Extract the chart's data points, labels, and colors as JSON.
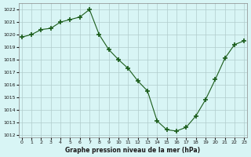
{
  "hours": [
    0,
    1,
    2,
    3,
    4,
    5,
    6,
    7,
    8,
    9,
    10,
    11,
    12,
    13,
    14,
    15,
    16,
    17,
    18,
    19,
    20,
    21,
    22,
    23
  ],
  "pressure": [
    1019.8,
    1020.0,
    1020.4,
    1020.5,
    1021.0,
    1021.2,
    1021.4,
    1022.0,
    1020.0,
    1018.8,
    1018.0,
    1017.3,
    1016.3,
    1015.5,
    1013.1,
    1012.4,
    1012.3,
    1012.6,
    1013.5,
    1014.8,
    1016.4,
    1018.1,
    1019.2,
    1019.5
  ],
  "line_color": "#1a5c1a",
  "marker": "+",
  "bg_color": "#d8f5f5",
  "grid_color": "#b0cccc",
  "xlabel": "Graphe pression niveau de la mer (hPa)",
  "ylim": [
    1011.8,
    1022.5
  ],
  "xlim": [
    -0.3,
    23.3
  ],
  "yticks": [
    1012,
    1013,
    1014,
    1015,
    1016,
    1017,
    1018,
    1019,
    1020,
    1021,
    1022
  ],
  "xticks": [
    0,
    1,
    2,
    3,
    4,
    5,
    6,
    7,
    8,
    9,
    10,
    11,
    12,
    13,
    14,
    15,
    16,
    17,
    18,
    19,
    20,
    21,
    22,
    23
  ]
}
